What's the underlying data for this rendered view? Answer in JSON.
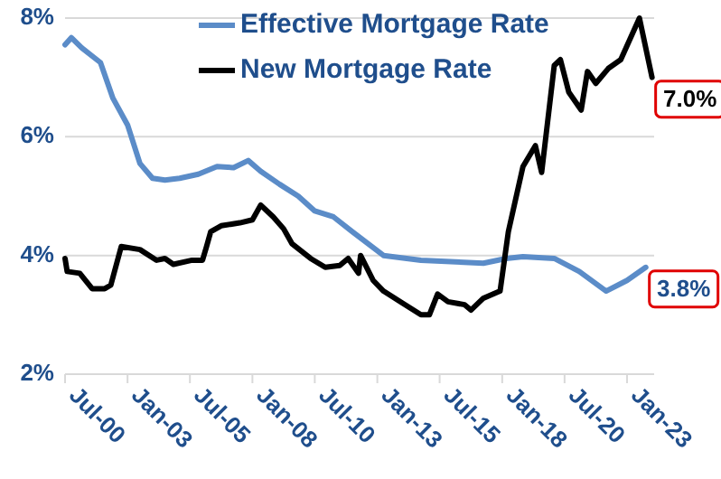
{
  "chart_data": {
    "type": "line",
    "xlim": [
      "2000-07",
      "2024-02"
    ],
    "xticks": [
      {
        "value": "2000-07",
        "label": "Jul-00"
      },
      {
        "value": "2003-01",
        "label": "Jan-03"
      },
      {
        "value": "2005-07",
        "label": "Jul-05"
      },
      {
        "value": "2008-01",
        "label": "Jan-08"
      },
      {
        "value": "2010-07",
        "label": "Jul-10"
      },
      {
        "value": "2013-01",
        "label": "Jan-13"
      },
      {
        "value": "2015-07",
        "label": "Jul-15"
      },
      {
        "value": "2018-01",
        "label": "Jan-18"
      },
      {
        "value": "2020-07",
        "label": "Jul-20"
      },
      {
        "value": "2023-01",
        "label": "Jan-23"
      }
    ],
    "ylim": [
      2,
      8
    ],
    "yticks": [
      {
        "value": 2,
        "label": "2%"
      },
      {
        "value": 4,
        "label": "4%"
      },
      {
        "value": 6,
        "label": "6%"
      },
      {
        "value": 8,
        "label": "8%"
      }
    ],
    "grid": "y",
    "legend": "top",
    "marker": "none",
    "line_style": "solid",
    "series": [
      {
        "name": "Effective Mortgage Rate",
        "color": "#5b8cc8",
        "x": [
          "2000-07",
          "2000-10",
          "2001-03",
          "2001-12",
          "2002-06",
          "2003-01",
          "2003-07",
          "2004-01",
          "2004-07",
          "2005-02",
          "2005-11",
          "2006-08",
          "2007-04",
          "2007-11",
          "2008-05",
          "2009-02",
          "2009-11",
          "2010-07",
          "2011-04",
          "2012-01",
          "2013-04",
          "2014-10",
          "2017-04",
          "2018-03",
          "2018-11",
          "2020-02",
          "2021-02",
          "2022-03",
          "2023-01",
          "2023-10"
        ],
        "values": [
          7.55,
          7.67,
          7.5,
          7.25,
          6.65,
          6.2,
          5.55,
          5.3,
          5.27,
          5.3,
          5.37,
          5.5,
          5.48,
          5.6,
          5.42,
          5.2,
          5.0,
          4.75,
          4.65,
          4.4,
          4.0,
          3.92,
          3.87,
          3.95,
          3.98,
          3.95,
          3.73,
          3.4,
          3.58,
          3.8
        ]
      },
      {
        "name": "New Mortgage Rate",
        "color": "#000000",
        "x": [
          "2000-07",
          "2000-08",
          "2001-02",
          "2001-08",
          "2002-02",
          "2002-05",
          "2002-10",
          "2003-07",
          "2004-03",
          "2004-07",
          "2004-11",
          "2005-08",
          "2006-01",
          "2006-03",
          "2006-05",
          "2006-10",
          "2007-07",
          "2008-01",
          "2008-05",
          "2008-11",
          "2009-04",
          "2009-08",
          "2010-05",
          "2010-12",
          "2011-07",
          "2011-11",
          "2012-04",
          "2012-05",
          "2012-11",
          "2013-04",
          "2014-01",
          "2014-10",
          "2015-02",
          "2015-06",
          "2015-11",
          "2016-07",
          "2016-10",
          "2017-04",
          "2017-12",
          "2018-04",
          "2018-11",
          "2019-05",
          "2019-08",
          "2020-02",
          "2020-05",
          "2020-09",
          "2021-03",
          "2021-06",
          "2021-10",
          "2022-04",
          "2022-10",
          "2023-07",
          "2024-01"
        ],
        "values": [
          3.95,
          3.73,
          3.7,
          3.44,
          3.44,
          3.5,
          4.15,
          4.1,
          3.92,
          3.95,
          3.85,
          3.92,
          3.92,
          4.15,
          4.4,
          4.5,
          4.55,
          4.6,
          4.85,
          4.65,
          4.45,
          4.2,
          3.95,
          3.8,
          3.83,
          3.95,
          3.7,
          4.0,
          3.58,
          3.4,
          3.2,
          3.0,
          3.0,
          3.35,
          3.22,
          3.17,
          3.08,
          3.28,
          3.4,
          4.4,
          5.5,
          5.85,
          5.4,
          7.2,
          7.3,
          6.75,
          6.45,
          7.1,
          6.9,
          7.15,
          7.3,
          8.0,
          7.0
        ]
      }
    ],
    "annotations": [
      {
        "text": "7.0%",
        "x": "2024-01",
        "y": 7.0
      },
      {
        "text": "3.8%",
        "x": "2023-10",
        "y": 3.8
      }
    ]
  }
}
